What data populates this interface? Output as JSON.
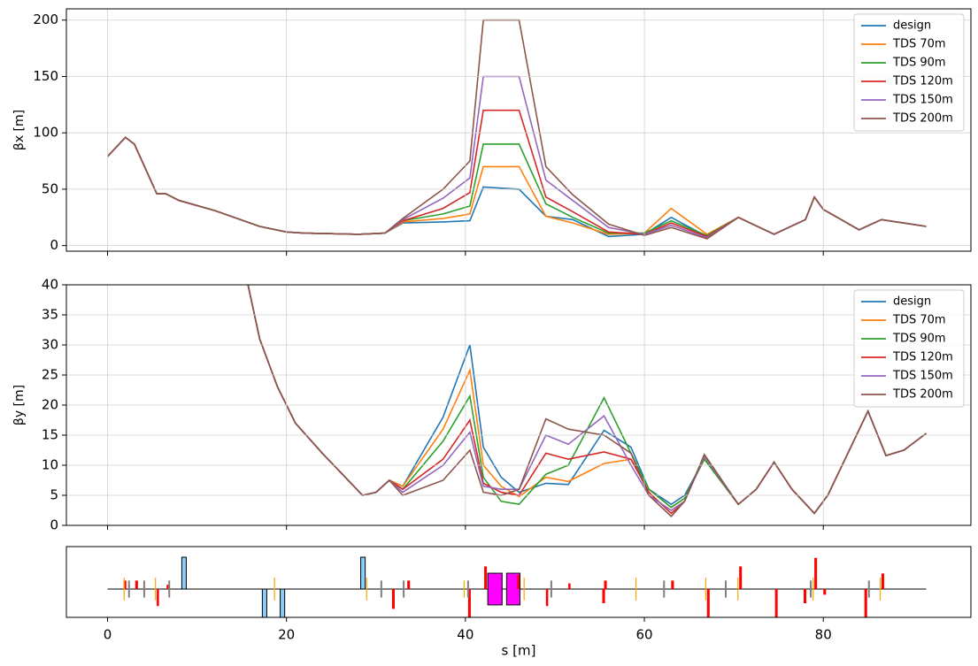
{
  "chart_data": [
    {
      "type": "line",
      "ylabel": "βx [m]",
      "sharex": true,
      "grid": true,
      "legend": "upper right",
      "ylim": [
        -5,
        210
      ],
      "yticks": [
        0,
        50,
        100,
        150,
        200
      ],
      "x": [
        0,
        2,
        3,
        5.5,
        6.5,
        8,
        12,
        17,
        20,
        22,
        25,
        28,
        31,
        33,
        37.5,
        40.5,
        42,
        46,
        49,
        52,
        56,
        60,
        63,
        67,
        70.5,
        74.5,
        78,
        79,
        80,
        84,
        86.5,
        91.5
      ],
      "series": [
        {
          "name": "design",
          "color": "#1f77b4",
          "values": [
            79,
            96,
            90,
            46,
            46,
            40,
            31,
            17,
            12,
            11,
            10.5,
            10,
            11,
            20,
            21,
            22,
            52,
            50,
            26,
            23,
            8,
            10,
            25,
            8,
            25,
            10,
            23,
            43,
            32,
            14,
            23,
            17
          ]
        },
        {
          "name": "TDS 70m",
          "color": "#ff7f0e",
          "values": [
            79,
            96,
            90,
            46,
            46,
            40,
            31,
            17,
            12,
            11,
            10.5,
            10,
            11,
            21,
            24,
            28,
            70,
            70,
            26,
            20,
            10,
            11,
            33,
            10,
            25,
            10,
            23,
            43,
            32,
            14,
            23,
            17
          ]
        },
        {
          "name": "TDS 90m",
          "color": "#2ca02c",
          "values": [
            79,
            96,
            90,
            46,
            46,
            40,
            31,
            17,
            12,
            11,
            10.5,
            10,
            11,
            22,
            28,
            35,
            90,
            90,
            37,
            25,
            11,
            11,
            22,
            9,
            25,
            10,
            23,
            43,
            32,
            14,
            23,
            17
          ]
        },
        {
          "name": "TDS 120m",
          "color": "#d62728",
          "values": [
            79,
            96,
            90,
            46,
            46,
            40,
            31,
            17,
            12,
            11,
            10.5,
            10,
            11,
            22,
            33,
            47,
            120,
            120,
            43,
            30,
            12,
            10,
            20,
            8,
            25,
            10,
            23,
            43,
            32,
            14,
            23,
            17
          ]
        },
        {
          "name": "TDS 150m",
          "color": "#9467bd",
          "values": [
            79,
            96,
            90,
            46,
            46,
            40,
            31,
            17,
            12,
            11,
            10.5,
            10,
            11,
            23,
            42,
            60,
            150,
            150,
            58,
            40,
            16,
            10,
            18,
            7,
            25,
            10,
            23,
            43,
            32,
            14,
            23,
            17
          ]
        },
        {
          "name": "TDS 200m",
          "color": "#8c564b",
          "values": [
            79,
            96,
            90,
            46,
            46,
            40,
            31,
            17,
            12,
            11,
            10.5,
            10,
            11,
            24,
            50,
            75,
            200,
            200,
            70,
            45,
            19,
            9,
            16,
            6,
            25,
            10,
            23,
            43,
            32,
            14,
            23,
            17
          ]
        }
      ]
    },
    {
      "type": "line",
      "ylabel": "βy [m]",
      "sharex": true,
      "grid": true,
      "legend": "upper right",
      "ylim": [
        0,
        40
      ],
      "yticks": [
        0,
        5,
        10,
        15,
        20,
        25,
        30,
        35,
        40
      ],
      "x": [
        15.7,
        17,
        19,
        21,
        24,
        28.5,
        30,
        31.5,
        33,
        37.5,
        40.5,
        42,
        44,
        46,
        49,
        51.5,
        55.5,
        58.5,
        60.5,
        63,
        64.5,
        66.7,
        70.5,
        72.5,
        74.5,
        76.5,
        79,
        80.5,
        85,
        87,
        89,
        91.5
      ],
      "series": [
        {
          "name": "design",
          "color": "#1f77b4",
          "values": [
            40,
            31,
            23,
            17,
            12,
            5,
            5.5,
            7.5,
            6.5,
            18,
            30,
            13,
            8,
            5.5,
            7,
            6.8,
            15.8,
            13,
            6,
            3.5,
            5,
            11,
            3.5,
            6,
            10.5,
            6,
            2,
            5,
            19,
            11.6,
            12.5,
            15.3
          ]
        },
        {
          "name": "TDS 70m",
          "color": "#ff7f0e",
          "values": [
            40,
            31,
            23,
            17,
            12,
            5,
            5.5,
            7.5,
            6.5,
            16,
            25.8,
            10,
            6.5,
            4.8,
            8,
            7.3,
            10.3,
            11,
            6,
            3,
            4.5,
            11,
            3.5,
            6,
            10.5,
            6,
            2,
            5,
            19,
            11.6,
            12.5,
            15.3
          ]
        },
        {
          "name": "TDS 90m",
          "color": "#2ca02c",
          "values": [
            40,
            31,
            23,
            17,
            12,
            5,
            5.5,
            7.5,
            6,
            14,
            21.5,
            8,
            4,
            3.5,
            8.5,
            10,
            21.2,
            12,
            6,
            3,
            4.5,
            11,
            3.5,
            6,
            10.5,
            6,
            2,
            5,
            19,
            11.6,
            12.5,
            15.3
          ]
        },
        {
          "name": "TDS 120m",
          "color": "#d62728",
          "values": [
            40,
            31,
            23,
            17,
            12,
            5,
            5.5,
            7.5,
            6,
            11,
            17.5,
            7,
            5.5,
            5,
            12,
            11,
            12.2,
            11,
            5.5,
            2,
            4,
            11.5,
            3.5,
            6,
            10.5,
            6,
            2,
            5,
            19,
            11.6,
            12.5,
            15.3
          ]
        },
        {
          "name": "TDS 150m",
          "color": "#9467bd",
          "values": [
            40,
            31,
            23,
            17,
            12,
            5,
            5.5,
            7.5,
            5.5,
            10,
            15.5,
            6.5,
            6,
            6,
            15,
            13.5,
            18.2,
            10,
            5,
            2.5,
            4,
            11.5,
            3.5,
            6,
            10.5,
            6,
            2,
            5,
            19,
            11.6,
            12.5,
            15.3
          ]
        },
        {
          "name": "TDS 200m",
          "color": "#8c564b",
          "values": [
            40,
            31,
            23,
            17,
            12,
            5,
            5.5,
            7.5,
            5,
            7.5,
            12.5,
            5.5,
            5,
            6,
            17.7,
            16,
            15,
            12,
            5,
            1.5,
            4,
            11.8,
            3.5,
            6,
            10.5,
            6,
            2,
            5,
            19,
            11.6,
            12.5,
            15.3
          ]
        }
      ]
    },
    {
      "type": "bar",
      "xlabel": "s [m]",
      "xlim": [
        -4.6,
        96.5
      ],
      "xticks": [
        0,
        20,
        40,
        60,
        80
      ],
      "ylim": [
        -1,
        1.5
      ],
      "line": {
        "x": [
          0,
          91.5
        ],
        "values": [
          0,
          0
        ],
        "color": "#000000"
      },
      "x": [
        8.3,
        17.3,
        19.3,
        28.3,
        42.5,
        44.6,
        1.8,
        3.1,
        5.5,
        6.6,
        31.8,
        33.5,
        40.3,
        42.1,
        45.8,
        49,
        51.5,
        55.5,
        55.3,
        63,
        67,
        70.6,
        74.6,
        77.8,
        79,
        80,
        84.6,
        86.5,
        1.8,
        5.3,
        18.6,
        28.9,
        39.8,
        46.5,
        59,
        66.8,
        70.4,
        78.8,
        86.3,
        2.3,
        4,
        6.8,
        30.5,
        33,
        40.2,
        49.5,
        62.1,
        69,
        78.5,
        85
      ],
      "widths": [
        0.5,
        0.5,
        0.5,
        0.5,
        1.6,
        1.5,
        0.3,
        0.3,
        0.25,
        0.3,
        0.3,
        0.3,
        0.3,
        0.3,
        0.25,
        0.25,
        0.25,
        0.3,
        0.3,
        0.3,
        0.3,
        0.3,
        0.3,
        0.3,
        0.3,
        0.3,
        0.3,
        0.3,
        0.12,
        0.12,
        0.12,
        0.12,
        0.12,
        0.12,
        0.12,
        0.12,
        0.12,
        0.12,
        0.12,
        0.2,
        0.2,
        0.2,
        0.2,
        0.2,
        0.2,
        0.2,
        0.2,
        0.2,
        0.2,
        0.2
      ],
      "values": [
        1.125,
        0,
        0,
        1.125,
        0.56,
        0.56,
        0.3,
        0.3,
        0,
        0.15,
        0,
        0.3,
        0,
        0.8,
        0.5,
        0,
        0.2,
        0.3,
        0,
        0.3,
        0,
        0.8,
        0,
        0,
        1.1,
        0,
        0,
        0.55,
        0.4,
        0.4,
        0.4,
        0.4,
        0.3,
        0.4,
        0.4,
        0.4,
        0.4,
        0.4,
        0.4,
        0.3,
        0.3,
        0.3,
        0.3,
        0.3,
        0.3,
        0.3,
        0.3,
        0.3,
        0.3,
        0.3
      ],
      "bases": [
        0,
        -1,
        -1,
        0,
        -0.56,
        -0.56,
        0,
        0,
        -0.6,
        0,
        -0.7,
        0,
        -1,
        0,
        0,
        -0.6,
        0,
        0,
        -0.5,
        0,
        -1,
        0,
        -1,
        -0.5,
        0,
        -0.2,
        -1,
        0,
        -0.4,
        -0.4,
        -0.4,
        -0.4,
        -0.3,
        -0.4,
        -0.4,
        -0.4,
        -0.4,
        -0.4,
        -0.4,
        -0.3,
        -0.3,
        -0.3,
        -0.3,
        -0.3,
        -0.3,
        -0.3,
        -0.3,
        -0.3,
        -0.3,
        -0.3
      ],
      "colors": [
        "#87cefa",
        "#87cefa",
        "#87cefa",
        "#87cefa",
        "#ff00ff",
        "#ff00ff",
        "#ff0000",
        "#ff0000",
        "#ff0000",
        "#ff0000",
        "#ff0000",
        "#ff0000",
        "#ff0000",
        "#ff0000",
        "#ff0000",
        "#ff0000",
        "#ff0000",
        "#ff0000",
        "#ff0000",
        "#ff0000",
        "#ff0000",
        "#ff0000",
        "#ff0000",
        "#ff0000",
        "#ff0000",
        "#ff0000",
        "#ff0000",
        "#ff0000",
        "#ffa500",
        "#ffa500",
        "#ffa500",
        "#ffa500",
        "#ffa500",
        "#ffa500",
        "#ffa500",
        "#ffa500",
        "#ffa500",
        "#ffa500",
        "#ffa500",
        "#808080",
        "#808080",
        "#808080",
        "#808080",
        "#808080",
        "#808080",
        "#808080",
        "#808080",
        "#808080",
        "#808080",
        "#808080"
      ]
    }
  ]
}
